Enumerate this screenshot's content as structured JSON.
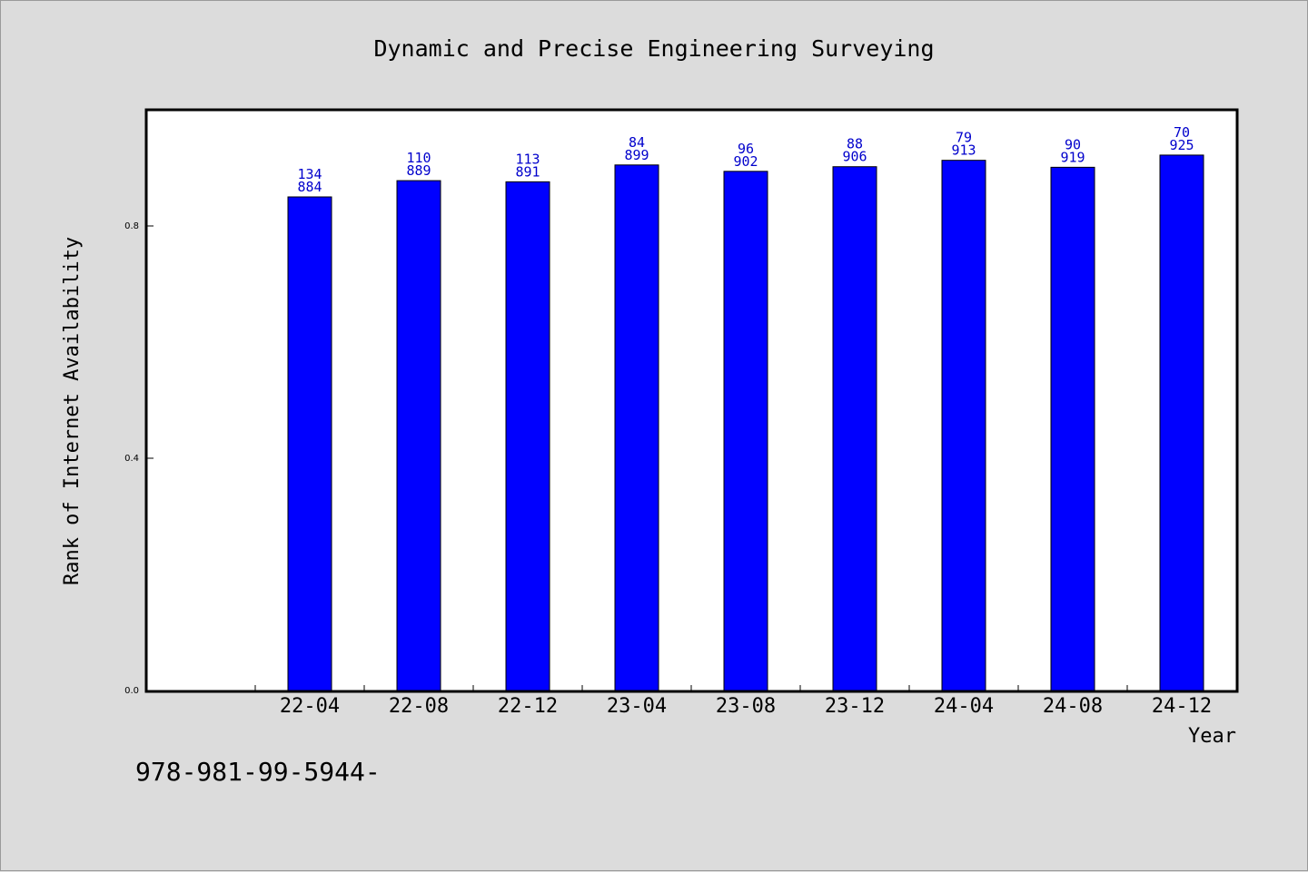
{
  "chart_data": {
    "type": "bar",
    "title": "Dynamic and Precise Engineering Surveying",
    "xlabel": "Year",
    "ylabel": "Rank of Internet Availability",
    "categories": [
      "22-04",
      "22-08",
      "22-12",
      "23-04",
      "23-08",
      "23-12",
      "24-04",
      "24-08",
      "24-12"
    ],
    "values": [
      0.85,
      0.878,
      0.876,
      0.905,
      0.894,
      0.902,
      0.913,
      0.901,
      0.922
    ],
    "labels_top": [
      "134",
      "110",
      "113",
      "84",
      "96",
      "88",
      "79",
      "90",
      "70"
    ],
    "labels_bottom": [
      "884",
      "889",
      "891",
      "899",
      "902",
      "906",
      "913",
      "919",
      "925"
    ],
    "ylim": [
      0.0,
      1.0
    ],
    "yticks": [
      0.0,
      0.4,
      0.8
    ],
    "ytick_labels": [
      "0.0",
      "0.4",
      "0.8"
    ],
    "grid": false,
    "legend": "none",
    "colors": {
      "bar": "#0000ff",
      "bar_edge": "#000000",
      "data_label": "#0000cc",
      "plot_bg": "#ffffff",
      "page_bg": "#dcdcdc"
    }
  },
  "footnote": "978-981-99-5944-"
}
